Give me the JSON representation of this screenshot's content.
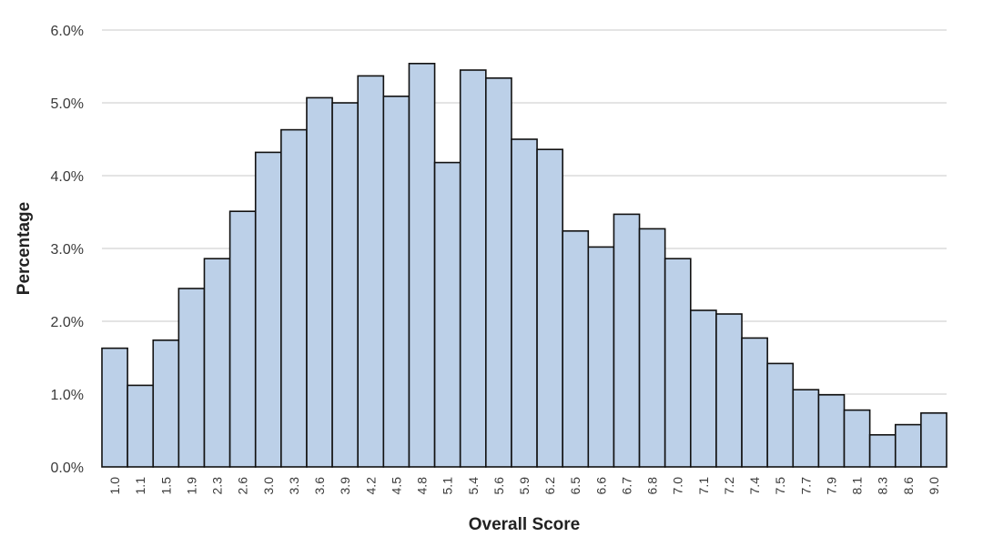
{
  "chart_data": {
    "type": "bar",
    "title": "",
    "xlabel": "Overall Score",
    "ylabel": "Percentage",
    "ylim": [
      0,
      6
    ],
    "yticks": [
      "0.0%",
      "1.0%",
      "2.0%",
      "3.0%",
      "4.0%",
      "5.0%",
      "6.0%"
    ],
    "grid": true,
    "legend": "none",
    "categories": [
      "1.0",
      "1.1",
      "1.5",
      "1.9",
      "2.3",
      "2.6",
      "3.0",
      "3.3",
      "3.6",
      "3.9",
      "4.2",
      "4.5",
      "4.8",
      "5.1",
      "5.4",
      "5.6",
      "5.9",
      "6.2",
      "6.5",
      "6.6",
      "6.7",
      "6.8",
      "7.0",
      "7.1",
      "7.2",
      "7.4",
      "7.5",
      "7.7",
      "7.9",
      "8.1",
      "8.3",
      "8.6",
      "9.0"
    ],
    "values": [
      1.63,
      1.12,
      1.74,
      2.45,
      2.86,
      3.51,
      4.32,
      4.63,
      5.07,
      5.0,
      5.37,
      5.09,
      5.54,
      4.18,
      5.45,
      5.34,
      4.5,
      4.36,
      3.24,
      3.02,
      3.47,
      3.27,
      2.86,
      2.15,
      2.1,
      1.77,
      1.42,
      1.06,
      0.99,
      0.78,
      0.44,
      0.58,
      0.74
    ]
  },
  "colors": {
    "bar_fill": "#bcd0e8",
    "bar_stroke": "#111111",
    "grid": "#c9c9c9"
  }
}
